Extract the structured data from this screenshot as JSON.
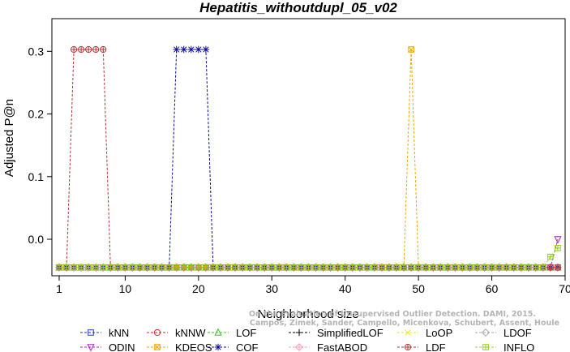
{
  "chart_data": {
    "type": "line",
    "title": "Hepatitis_withoutdupl_05_v02",
    "xlabel": "Neighborhood size",
    "ylabel": "Adjusted P@n",
    "xlim": [
      0,
      70
    ],
    "ylim": [
      -0.045,
      0.34
    ],
    "xticks": [
      1,
      10,
      20,
      30,
      40,
      50,
      60,
      70
    ],
    "yticks": [
      0.0,
      0.1,
      0.2,
      0.3
    ],
    "ytick_labels": [
      "0.0",
      "0.1",
      "0.2",
      "0.3"
    ],
    "x_min": 1,
    "x_max": 69,
    "baseline": -0.045,
    "legend_position": "bottom",
    "series": [
      {
        "name": "kNN",
        "color": "#1f3bbf",
        "marker": "square",
        "peaks": []
      },
      {
        "name": "kNNW",
        "color": "#cc2b2b",
        "marker": "circle",
        "peaks": []
      },
      {
        "name": "LOF",
        "color": "#2ec22e",
        "marker": "triangle-up",
        "peaks": []
      },
      {
        "name": "SimplifiedLOF",
        "color": "#000000",
        "marker": "plus",
        "peaks": []
      },
      {
        "name": "LoOP",
        "color": "#e8e81c",
        "marker": "x",
        "peaks": []
      },
      {
        "name": "LDOF",
        "color": "#a6a6a6",
        "marker": "diamond",
        "peaks": []
      },
      {
        "name": "ODIN",
        "color": "#b319d9",
        "marker": "triangle-down",
        "peaks": [
          {
            "x": 69,
            "y": 0.0
          }
        ]
      },
      {
        "name": "KDEOS",
        "color": "#f0a800",
        "marker": "square-x",
        "peaks": [
          {
            "x": 49,
            "y": 0.303
          }
        ]
      },
      {
        "name": "COF",
        "color": "#0d0d99",
        "marker": "asterisk",
        "peaks": [
          {
            "x": 17,
            "y": 0.303
          },
          {
            "x": 18,
            "y": 0.303
          },
          {
            "x": 19,
            "y": 0.303
          },
          {
            "x": 20,
            "y": 0.303
          },
          {
            "x": 21,
            "y": 0.303
          }
        ]
      },
      {
        "name": "FastABOD",
        "color": "#f4a6b8",
        "marker": "diamond-plus",
        "peaks": []
      },
      {
        "name": "LDF",
        "color": "#b33636",
        "marker": "circle-plus",
        "peaks": [
          {
            "x": 3,
            "y": 0.303
          },
          {
            "x": 4,
            "y": 0.303
          },
          {
            "x": 5,
            "y": 0.303
          },
          {
            "x": 6,
            "y": 0.303
          },
          {
            "x": 7,
            "y": 0.303
          }
        ]
      },
      {
        "name": "INFLO",
        "color": "#8fd11c",
        "marker": "square-cross",
        "peaks": [
          {
            "x": 68,
            "y": -0.028
          },
          {
            "x": 69,
            "y": -0.014
          }
        ]
      }
    ]
  },
  "watermark": {
    "line1": "Campos, Zimek, Sander, Campello, Micenkova, Schubert, Assent, Houle",
    "line2": "On the Evaluation of Unsupervised Outlier Detection. DAMI, 2015."
  }
}
